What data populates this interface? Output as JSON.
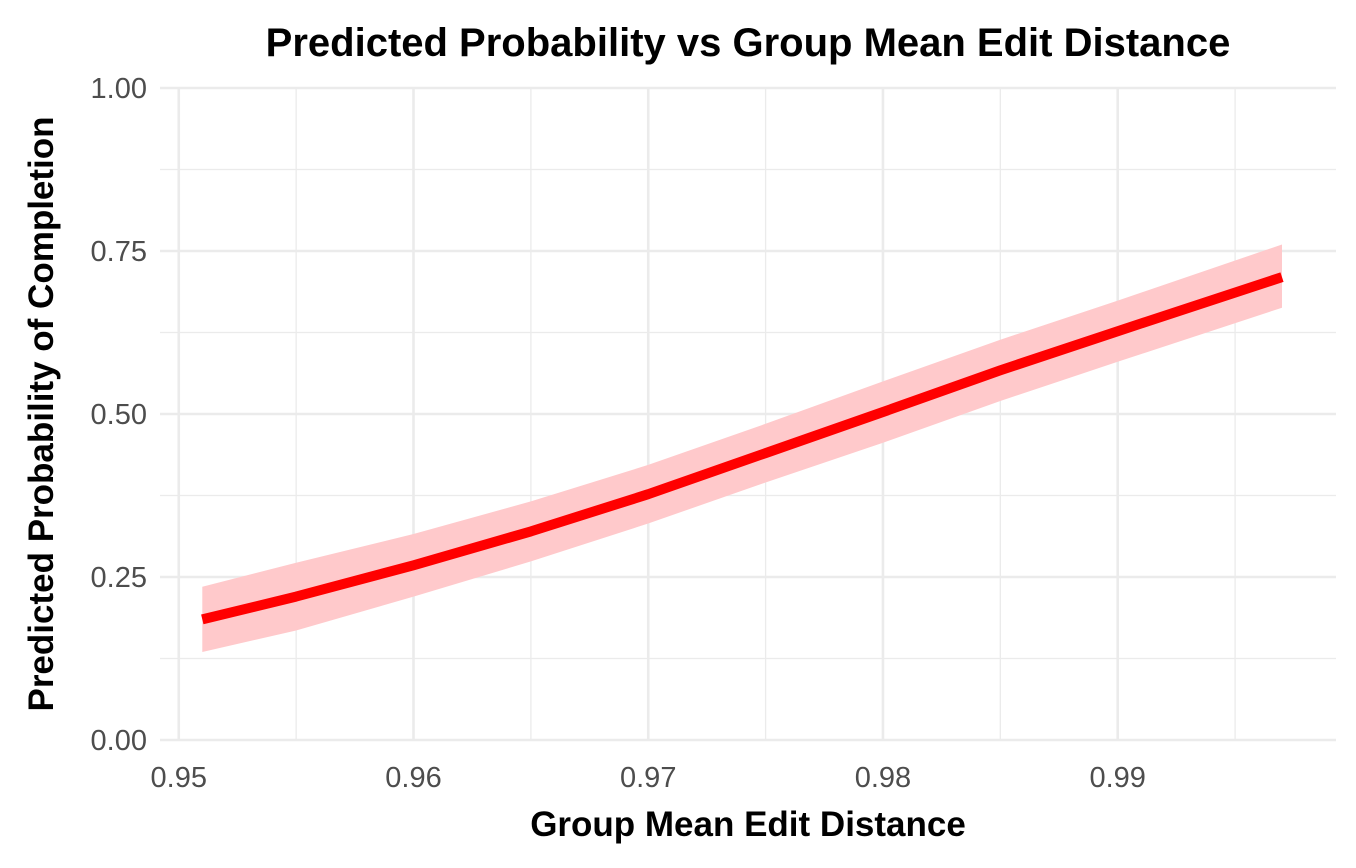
{
  "chart_data": {
    "type": "line",
    "title": "Predicted Probability vs Group Mean Edit Distance",
    "xlabel": "Group Mean Edit Distance",
    "ylabel": "Predicted Probability of Completion",
    "xlim": [
      0.9492,
      0.9993
    ],
    "ylim": [
      0.0,
      1.0
    ],
    "x_ticks": [
      0.95,
      0.96,
      0.97,
      0.98,
      0.99
    ],
    "x_tick_labels": [
      "0.95",
      "0.96",
      "0.97",
      "0.98",
      "0.99"
    ],
    "y_ticks": [
      0.0,
      0.25,
      0.5,
      0.75,
      1.0
    ],
    "y_tick_labels": [
      "0.00",
      "0.25",
      "0.50",
      "0.75",
      "1.00"
    ],
    "grid": true,
    "legend": "none",
    "colors": {
      "line": "#ff0000",
      "ribbon": "#ffc9cb"
    },
    "series": [
      {
        "x": [
          0.951,
          0.955,
          0.96,
          0.965,
          0.97,
          0.975,
          0.98,
          0.985,
          0.99,
          0.997
        ],
        "y": [
          0.185,
          0.22,
          0.268,
          0.32,
          0.377,
          0.44,
          0.503,
          0.567,
          0.627,
          0.71
        ],
        "lower": [
          0.135,
          0.168,
          0.22,
          0.274,
          0.332,
          0.395,
          0.456,
          0.52,
          0.58,
          0.663
        ],
        "upper": [
          0.235,
          0.272,
          0.316,
          0.366,
          0.422,
          0.485,
          0.55,
          0.614,
          0.674,
          0.76
        ]
      }
    ]
  }
}
